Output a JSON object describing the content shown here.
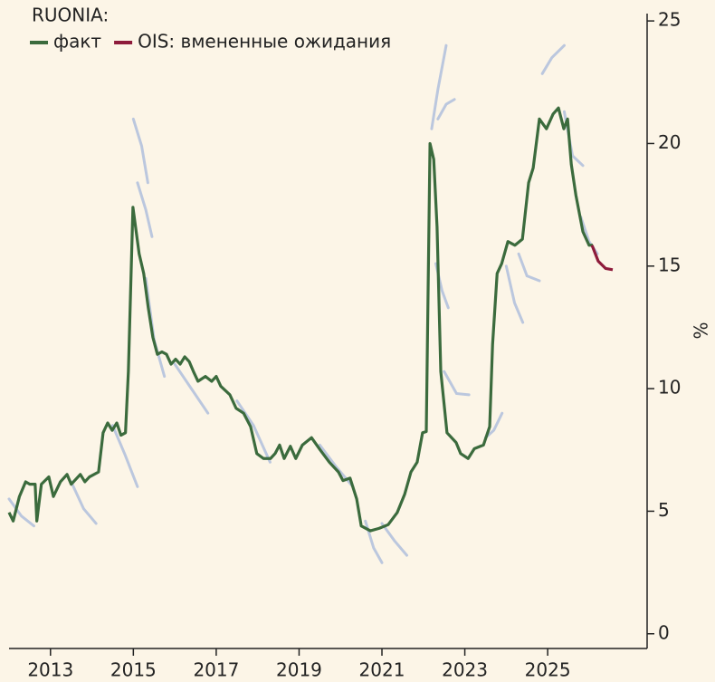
{
  "chart_data": {
    "type": "line",
    "title": "RUONIA:",
    "y_label": "%",
    "xlim": [
      2012.0,
      2027.4
    ],
    "ylim": [
      -0.6,
      25.3
    ],
    "xticks": [
      2013,
      2015,
      2017,
      2019,
      2021,
      2023,
      2025
    ],
    "yticks": [
      0,
      5,
      10,
      15,
      20,
      25
    ],
    "y_axis_side": "right",
    "series": [
      {
        "name": "факт",
        "color": "#3b6b3d",
        "x": [
          2012.0,
          2012.1,
          2012.25,
          2012.4,
          2012.5,
          2012.63,
          2012.67,
          2012.78,
          2012.96,
          2013.07,
          2013.24,
          2013.4,
          2013.5,
          2013.72,
          2013.83,
          2013.94,
          2014.16,
          2014.27,
          2014.38,
          2014.49,
          2014.6,
          2014.7,
          2014.81,
          2014.88,
          2014.99,
          2015.14,
          2015.25,
          2015.36,
          2015.47,
          2015.58,
          2015.69,
          2015.8,
          2015.91,
          2016.02,
          2016.13,
          2016.24,
          2016.35,
          2016.45,
          2016.56,
          2016.74,
          2016.89,
          2017.0,
          2017.11,
          2017.33,
          2017.48,
          2017.66,
          2017.83,
          2017.98,
          2018.14,
          2018.31,
          2018.42,
          2018.53,
          2018.64,
          2018.79,
          2018.92,
          2019.08,
          2019.3,
          2019.51,
          2019.73,
          2019.95,
          2020.06,
          2020.23,
          2020.39,
          2020.5,
          2020.72,
          2020.93,
          2021.15,
          2021.37,
          2021.55,
          2021.7,
          2021.85,
          2021.98,
          2022.07,
          2022.16,
          2022.25,
          2022.33,
          2022.42,
          2022.57,
          2022.79,
          2022.9,
          2023.08,
          2023.23,
          2023.45,
          2023.6,
          2023.67,
          2023.78,
          2023.89,
          2024.04,
          2024.21,
          2024.39,
          2024.54,
          2024.65,
          2024.8,
          2024.97,
          2025.13,
          2025.26,
          2025.39,
          2025.48,
          2025.57,
          2025.68,
          2025.85,
          2026.0,
          2026.09
        ],
        "values": [
          4.95,
          4.6,
          5.6,
          6.2,
          6.1,
          6.1,
          4.6,
          6.1,
          6.4,
          5.6,
          6.2,
          6.5,
          6.1,
          6.5,
          6.2,
          6.4,
          6.6,
          8.2,
          8.6,
          8.3,
          8.6,
          8.1,
          8.2,
          10.7,
          17.4,
          15.5,
          14.7,
          13.3,
          12.1,
          11.4,
          11.5,
          11.4,
          11.0,
          11.2,
          11.0,
          11.3,
          11.1,
          10.7,
          10.3,
          10.5,
          10.3,
          10.5,
          10.1,
          9.75,
          9.2,
          9.0,
          8.45,
          7.35,
          7.15,
          7.15,
          7.35,
          7.7,
          7.15,
          7.65,
          7.15,
          7.7,
          8.0,
          7.5,
          7.0,
          6.6,
          6.25,
          6.35,
          5.5,
          4.4,
          4.2,
          4.3,
          4.45,
          4.95,
          5.7,
          6.6,
          7.0,
          8.2,
          8.25,
          20.0,
          19.35,
          16.6,
          10.7,
          8.2,
          7.8,
          7.35,
          7.15,
          7.55,
          7.7,
          8.45,
          11.8,
          14.7,
          15.1,
          16.0,
          15.85,
          16.1,
          18.4,
          19.0,
          21.0,
          20.6,
          21.2,
          21.45,
          20.6,
          21.0,
          19.15,
          17.9,
          16.4,
          15.85,
          15.85
        ]
      },
      {
        "name": "OIS: вмененные ожидания",
        "color": "#8e1b3b",
        "x": [
          2026.07,
          2026.22,
          2026.4,
          2026.57
        ],
        "values": [
          15.85,
          15.2,
          14.9,
          14.85
        ]
      }
    ],
    "forecast_color": "#9fb4da",
    "forecast_paths": [
      {
        "x": [
          2015.0,
          2015.2,
          2015.35
        ],
        "values": [
          21.0,
          19.9,
          18.4
        ]
      },
      {
        "x": [
          2015.1,
          2015.3,
          2015.45
        ],
        "values": [
          18.4,
          17.3,
          16.2
        ]
      },
      {
        "x": [
          2015.3,
          2015.5,
          2015.75
        ],
        "values": [
          14.5,
          12.0,
          10.5
        ]
      },
      {
        "x": [
          2012.0,
          2012.3,
          2012.6
        ],
        "values": [
          5.5,
          4.8,
          4.4
        ]
      },
      {
        "x": [
          2013.5,
          2013.8,
          2014.1
        ],
        "values": [
          6.2,
          5.1,
          4.5
        ]
      },
      {
        "x": [
          2014.5,
          2014.8,
          2015.1
        ],
        "values": [
          8.5,
          7.3,
          6.0
        ]
      },
      {
        "x": [
          2016.0,
          2016.4,
          2016.8
        ],
        "values": [
          11.0,
          10.0,
          9.0
        ]
      },
      {
        "x": [
          2017.5,
          2017.9,
          2018.3
        ],
        "values": [
          9.5,
          8.5,
          7.0
        ]
      },
      {
        "x": [
          2019.5,
          2019.9,
          2020.3
        ],
        "values": [
          7.7,
          6.8,
          6.0
        ]
      },
      {
        "x": [
          2020.6,
          2020.8,
          2021.0
        ],
        "values": [
          4.6,
          3.5,
          2.9
        ]
      },
      {
        "x": [
          2021.0,
          2021.3,
          2021.6
        ],
        "values": [
          4.5,
          3.8,
          3.2
        ]
      },
      {
        "x": [
          2022.2,
          2022.35,
          2022.55
        ],
        "values": [
          20.6,
          22.2,
          24.0
        ]
      },
      {
        "x": [
          2022.35,
          2022.55,
          2022.75
        ],
        "values": [
          21.0,
          21.6,
          21.8
        ]
      },
      {
        "x": [
          2022.3,
          2022.45,
          2022.6
        ],
        "values": [
          15.1,
          14.0,
          13.3
        ]
      },
      {
        "x": [
          2022.5,
          2022.8,
          2023.1
        ],
        "values": [
          10.7,
          9.8,
          9.75
        ]
      },
      {
        "x": [
          2023.5,
          2023.7,
          2023.9
        ],
        "values": [
          8.0,
          8.3,
          9.0
        ]
      },
      {
        "x": [
          2024.0,
          2024.2,
          2024.4
        ],
        "values": [
          15.0,
          13.5,
          12.7
        ]
      },
      {
        "x": [
          2024.3,
          2024.5,
          2024.8
        ],
        "values": [
          15.5,
          14.6,
          14.4
        ]
      },
      {
        "x": [
          2024.87,
          2025.1,
          2025.4
        ],
        "values": [
          22.85,
          23.5,
          24.0
        ]
      },
      {
        "x": [
          2025.4,
          2025.6,
          2025.85
        ],
        "values": [
          21.3,
          19.5,
          19.1
        ]
      },
      {
        "x": [
          2025.8,
          2026.0,
          2026.2
        ],
        "values": [
          17.0,
          16.0,
          15.5
        ]
      }
    ]
  }
}
